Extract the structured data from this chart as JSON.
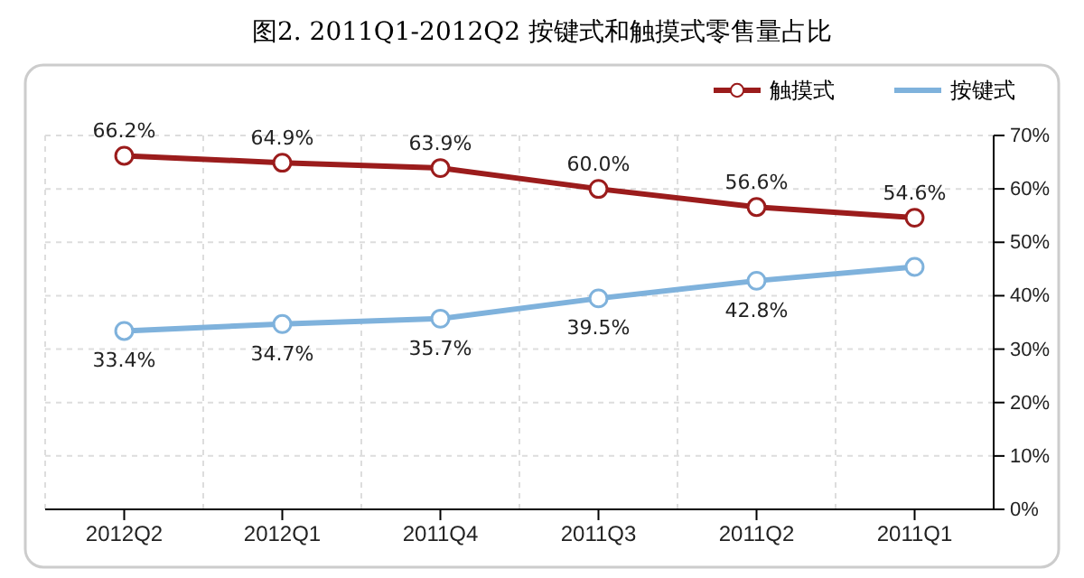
{
  "chart_data": {
    "type": "line",
    "title": "图2. 2011Q1-2012Q2 按键式和触摸式零售量占比",
    "categories": [
      "2012Q2",
      "2012Q1",
      "2011Q4",
      "2011Q3",
      "2011Q2",
      "2011Q1"
    ],
    "series": [
      {
        "name": "按键式",
        "color": "#7fb2dc",
        "values": [
          33.4,
          34.7,
          35.7,
          39.5,
          42.8,
          45.4
        ],
        "value_labels": [
          "33.4%",
          "34.7%",
          "35.7%",
          "39.5%",
          "42.8%",
          null
        ],
        "marker": "circle"
      },
      {
        "name": "触摸式",
        "color": "#9b1c1c",
        "values": [
          66.2,
          64.9,
          63.9,
          60.0,
          56.6,
          54.6
        ],
        "value_labels": [
          "66.2%",
          "64.9%",
          "63.9%",
          "60.0%",
          "56.6%",
          "54.6%"
        ],
        "marker": "circle"
      }
    ],
    "ylim": [
      0,
      70
    ],
    "yticks": [
      {
        "value": 0,
        "label": "0%"
      },
      {
        "value": 10,
        "label": "10%"
      },
      {
        "value": 20,
        "label": "20%"
      },
      {
        "value": 30,
        "label": "30%"
      },
      {
        "value": 40,
        "label": "40%"
      },
      {
        "value": 50,
        "label": "50%"
      },
      {
        "value": 60,
        "label": "60%"
      },
      {
        "value": 70,
        "label": "70%"
      }
    ],
    "grid": true,
    "legend": "top right"
  }
}
